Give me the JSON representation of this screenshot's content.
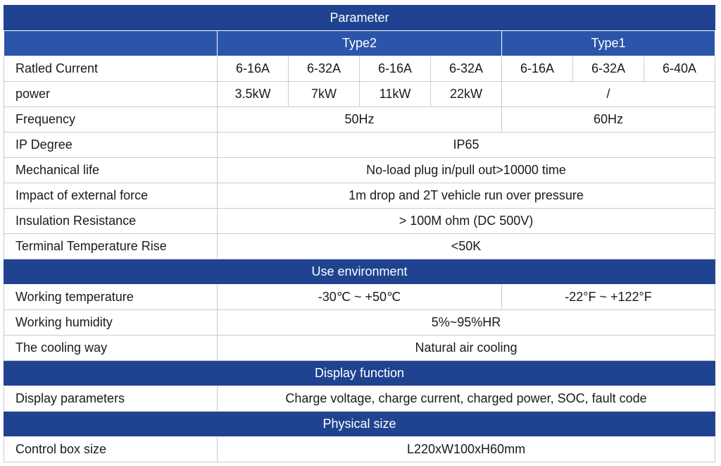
{
  "header": "Parameter",
  "types": [
    "Type2",
    "Type1"
  ],
  "rated_current": {
    "label": "Ratled Current",
    "values": [
      "6-16A",
      "6-32A",
      "6-16A",
      "6-32A",
      "6-16A",
      "6-32A",
      "6-40A"
    ]
  },
  "power": {
    "label": "power",
    "values": [
      "3.5kW",
      "7kW",
      "11kW",
      "22kW"
    ],
    "type1": "/"
  },
  "frequency": {
    "label": "Frequency",
    "type2": "50Hz",
    "type1": "60Hz"
  },
  "ip": {
    "label": "IP Degree",
    "value": "IP65"
  },
  "mechanical": {
    "label": "Mechanical life",
    "value": "No-load plug in/pull out>10000 time"
  },
  "impact": {
    "label": "Impact of external force",
    "value": "1m drop and 2T vehicle run over pressure"
  },
  "insulation": {
    "label": "Insulation Resistance",
    "value": "> 100M ohm (DC 500V)"
  },
  "temp_rise": {
    "label": "Terminal Temperature Rise",
    "value": "<50K"
  },
  "use_env": "Use environment",
  "working_temp": {
    "label": "Working temperature",
    "type2": "-30℃ ~ +50℃",
    "type1": "-22°F ~ +122°F"
  },
  "humidity": {
    "label": "Working humidity",
    "value": "5%~95%HR"
  },
  "cooling": {
    "label": "The cooling way",
    "value": "Natural air cooling"
  },
  "display_function": "Display function",
  "display_params": {
    "label": "Display parameters",
    "value": "Charge voltage, charge current, charged power, SOC, fault code"
  },
  "physical_size": "Physical size",
  "control_box": {
    "label": "Control box size",
    "value": "L220xW100xH60mm"
  }
}
